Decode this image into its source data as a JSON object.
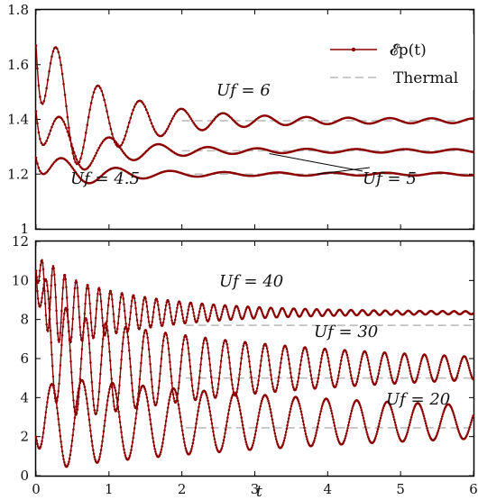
{
  "colors": {
    "data": "#8b0000",
    "thermal": "#b8b8b8",
    "axis": "#000000"
  },
  "chart_data": [
    {
      "panel": "top",
      "type": "line",
      "xlim": [
        0,
        6
      ],
      "ylim": [
        1,
        1.8
      ],
      "xticks": [
        0,
        1,
        2,
        3,
        4,
        5,
        6
      ],
      "yticks": [
        "1",
        "1.2",
        "1.4",
        "1.6",
        "1.8"
      ],
      "grid": false,
      "legend": {
        "placement": "top-right",
        "entries": [
          {
            "label": "𝓔p(t)",
            "style": "line-with-dots"
          },
          {
            "label": "Thermal",
            "style": "dashed"
          }
        ]
      },
      "series": [
        {
          "name": "Uf = 6",
          "y0": 1.67,
          "thermal": 1.395,
          "amp": 0.29,
          "omega": 11.0,
          "decay": 1.05,
          "floor": 0.008,
          "x_thermal_start": 2.0
        },
        {
          "name": "Uf = 5",
          "y0": 1.43,
          "thermal": 1.285,
          "amp": 0.15,
          "omega": 9.3,
          "decay": 1.25,
          "floor": 0.006,
          "x_thermal_start": 2.0
        },
        {
          "name": "Uf = 4.5",
          "y0": 1.26,
          "thermal": 1.2,
          "amp": 0.075,
          "omega": 8.5,
          "decay": 1.3,
          "floor": 0.005,
          "x_thermal_start": 2.0
        }
      ],
      "annotations": [
        {
          "text": "Uf = 6",
          "x": 2.85,
          "y": 1.435
        },
        {
          "text": "Uf = 4.5",
          "x": 0.55,
          "y": 1.14
        },
        {
          "text": "Uf = 5",
          "x": 4.55,
          "y": 1.14,
          "arrow_to": [
            3.2,
            1.275
          ]
        },
        {
          "line_to": [
            3.85,
            1.2
          ]
        }
      ]
    },
    {
      "panel": "bottom",
      "type": "line",
      "xlim": [
        0,
        6
      ],
      "ylim": [
        0,
        12
      ],
      "xticks": [
        "0",
        "1",
        "2",
        "3",
        "4",
        "5",
        "6"
      ],
      "yticks": [
        "0",
        "2",
        "4",
        "6",
        "8",
        "10",
        "12"
      ],
      "xlabel": "t",
      "grid": false,
      "series": [
        {
          "name": "Uf = 40",
          "y0": 10.5,
          "thermal": 7.7,
          "settle": 8.35,
          "amp": 2.3,
          "omega": 40.0,
          "decay": 0.75,
          "floor": 0.05,
          "x_thermal_start": 2.05
        },
        {
          "name": "Uf = 30",
          "y0": 10.5,
          "thermal": 5.0,
          "settle": 5.5,
          "amp": 2.9,
          "omega": 23.0,
          "decay": 0.3,
          "floor": 0.12,
          "x_thermal_start": 2.05
        },
        {
          "name": "Uf = 20",
          "y0": 2.0,
          "thermal": 2.45,
          "settle": 2.75,
          "amp": 2.25,
          "omega": 15.0,
          "decay": 0.2,
          "floor": 0.18,
          "x_thermal_start": 2.05
        }
      ],
      "annotations": [
        {
          "text": "Uf = 40",
          "x": 2.65,
          "y": 9.0
        },
        {
          "text": "Uf = 30",
          "x": 4.0,
          "y": 6.8
        },
        {
          "text": "Uf = 20",
          "x": 4.9,
          "y": 1.2
        }
      ]
    }
  ]
}
